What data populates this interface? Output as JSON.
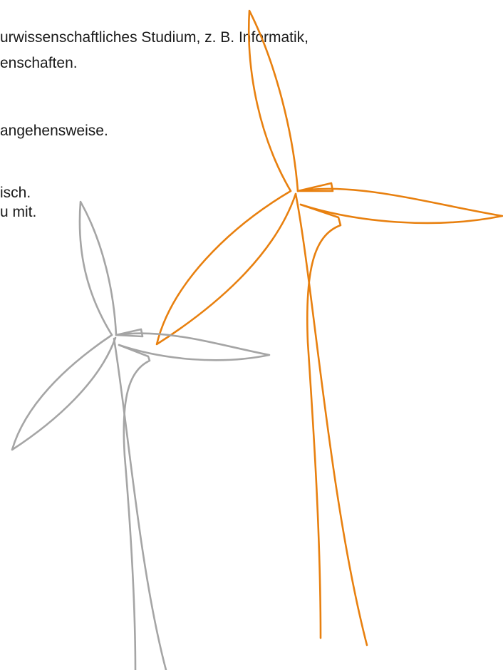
{
  "document": {
    "lines": [
      "urwissenschaftliches Studium, z. B. Informatik,",
      "enschaften.",
      "angehensweise.",
      "isch.",
      "u mit."
    ]
  }
}
